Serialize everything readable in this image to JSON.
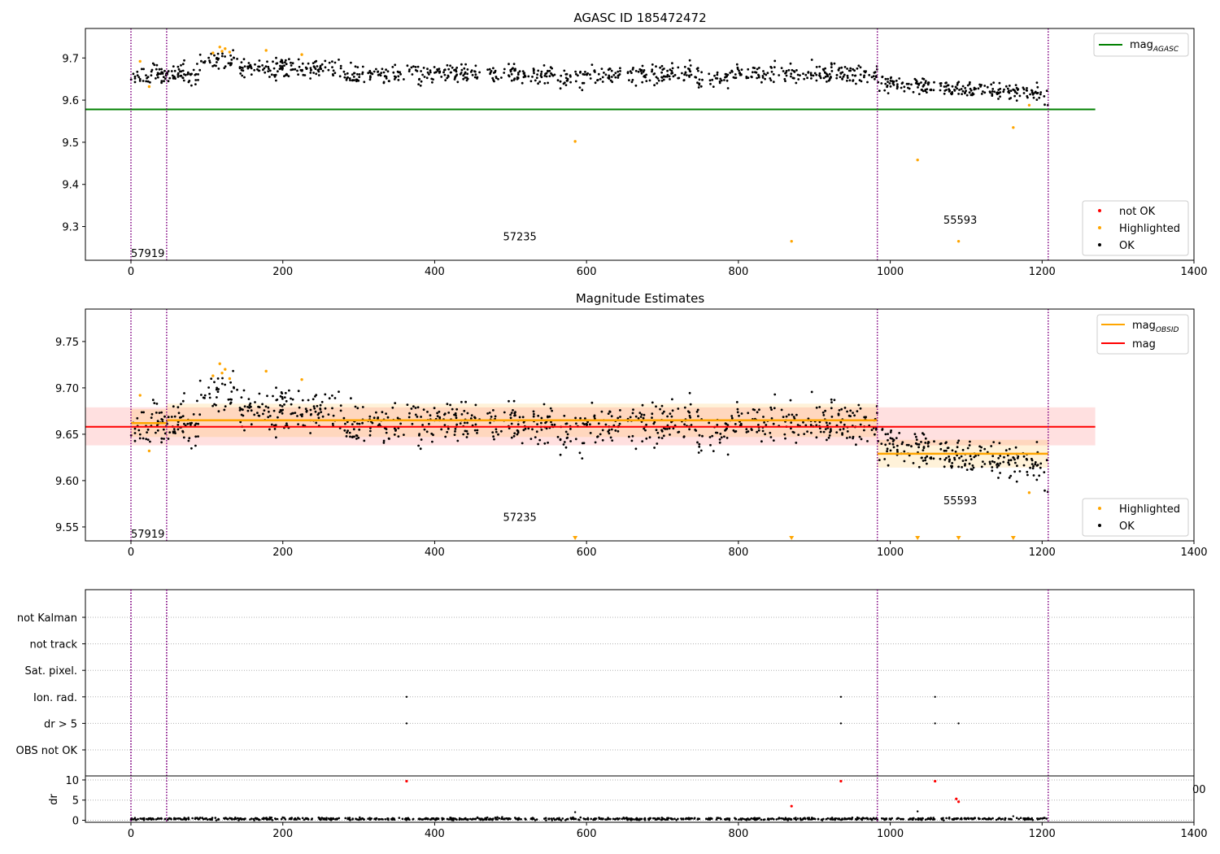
{
  "chart_data": [
    {
      "id": "p1",
      "type": "scatter",
      "title": "AGASC ID 185472472",
      "xlim": [
        -60,
        1400
      ],
      "ylim": [
        9.22,
        9.77
      ],
      "xticks": [
        0,
        200,
        400,
        600,
        800,
        1000,
        1200,
        1400
      ],
      "yticks": [
        9.3,
        9.4,
        9.5,
        9.6,
        9.7
      ],
      "ytick_labels": [
        "9.3",
        "9.4",
        "9.5",
        "9.6",
        "9.7"
      ],
      "vlines": [
        0,
        47,
        983,
        1208
      ],
      "obsid_labels": [
        {
          "text": "57919",
          "x": 0,
          "y": 9.235
        },
        {
          "text": "57235",
          "x": 490,
          "y": 9.275
        },
        {
          "text": "55593",
          "x": 1070,
          "y": 9.315
        }
      ],
      "hline": {
        "name_base": "mag",
        "name_sub": "AGASC",
        "y": 9.578,
        "x_range": [
          -60,
          1270
        ],
        "color": "#008000"
      },
      "highlighted": [
        [
          12,
          9.692
        ],
        [
          24,
          9.632
        ],
        [
          108,
          9.712
        ],
        [
          117,
          9.726
        ],
        [
          120,
          9.716
        ],
        [
          124,
          9.722
        ],
        [
          130,
          9.714
        ],
        [
          178,
          9.718
        ],
        [
          225,
          9.708
        ],
        [
          585,
          9.502
        ],
        [
          870,
          9.265
        ],
        [
          1036,
          9.458
        ],
        [
          1090,
          9.265
        ],
        [
          1162,
          9.535
        ],
        [
          1183,
          9.588
        ]
      ],
      "legend_scatter": [
        "not OK",
        "Highlighted",
        "OK"
      ],
      "colors": {
        "ok": "#000000",
        "highlighted": "#ffa500",
        "not_ok": "#ff0000",
        "vline": "#800080"
      }
    },
    {
      "id": "p2",
      "type": "scatter",
      "title": "Magnitude Estimates",
      "xlim": [
        -60,
        1400
      ],
      "ylim": [
        9.535,
        9.785
      ],
      "xticks": [
        0,
        200,
        400,
        600,
        800,
        1000,
        1200,
        1400
      ],
      "yticks": [
        9.55,
        9.6,
        9.65,
        9.7,
        9.75
      ],
      "ytick_labels": [
        "9.55",
        "9.60",
        "9.65",
        "9.70",
        "9.75"
      ],
      "vlines": [
        0,
        47,
        983,
        1208
      ],
      "obsid_labels": [
        {
          "text": "57919",
          "x": 0,
          "y": 9.542
        },
        {
          "text": "57235",
          "x": 490,
          "y": 9.56
        },
        {
          "text": "55593",
          "x": 1070,
          "y": 9.578
        }
      ],
      "mag": {
        "name": "mag",
        "y": 9.658,
        "band": [
          9.638,
          9.679
        ],
        "x_range": [
          -60,
          1270
        ],
        "color": "#ff0000"
      },
      "mag_obsid": {
        "name_base": "mag",
        "name_sub": "OBSID",
        "color": "#ffa500",
        "segments": [
          {
            "x": [
              0,
              47
            ],
            "y": 9.662,
            "band": [
              9.647,
              9.677
            ]
          },
          {
            "x": [
              47,
              983
            ],
            "y": 9.665,
            "band": [
              9.647,
              9.683
            ]
          },
          {
            "x": [
              983,
              1208
            ],
            "y": 9.629,
            "band": [
              9.614,
              9.644
            ]
          }
        ]
      },
      "highlighted": [
        [
          12,
          9.692
        ],
        [
          24,
          9.632
        ],
        [
          108,
          9.713
        ],
        [
          117,
          9.726
        ],
        [
          120,
          9.716
        ],
        [
          124,
          9.72
        ],
        [
          130,
          9.71
        ],
        [
          178,
          9.718
        ],
        [
          225,
          9.709
        ],
        [
          1183,
          9.587
        ]
      ],
      "below_markers": [
        585,
        870,
        1036,
        1090,
        1162
      ],
      "legend_scatter": [
        "Highlighted",
        "OK"
      ],
      "colors": {
        "ok": "#000000",
        "highlighted": "#ffa500",
        "vline": "#800080"
      }
    },
    {
      "id": "p3",
      "type": "scatter",
      "xlim": [
        -60,
        1400
      ],
      "vlines": [
        0,
        47,
        983,
        1208
      ],
      "flag_rows": [
        "OBS not OK",
        "dr > 5",
        "Ion. rad.",
        "Sat. pixel.",
        "not track",
        "not Kalman"
      ],
      "flag_points": [
        {
          "row": "Ion. rad.",
          "x": [
            363,
            935,
            1059
          ]
        },
        {
          "row": "dr > 5",
          "x": [
            363,
            935,
            1059,
            1090
          ]
        }
      ],
      "colors": {
        "flag": "#000000",
        "vline": "#800080"
      }
    },
    {
      "id": "p4",
      "type": "scatter",
      "ylabel": "dr",
      "xlim": [
        -60,
        1400
      ],
      "ylim": [
        -0.5,
        11
      ],
      "xticks": [
        0,
        200,
        400,
        600,
        800,
        1000,
        1200,
        1400
      ],
      "yticks": [
        0,
        5,
        10
      ],
      "ytick_labels": [
        "0",
        "5",
        "10"
      ],
      "vlines": [
        0,
        47,
        983,
        1208
      ],
      "right_tick_text": "00",
      "not_ok_points": [
        [
          363,
          9.7
        ],
        [
          870,
          3.5
        ],
        [
          935,
          9.7
        ],
        [
          1059,
          9.7
        ],
        [
          1087,
          5.3
        ],
        [
          1090,
          4.6
        ]
      ],
      "ok_outliers": [
        [
          585,
          2.0
        ],
        [
          1036,
          2.2
        ],
        [
          1162,
          1.0
        ]
      ],
      "colors": {
        "ok": "#000000",
        "not_ok": "#ff0000",
        "vline": "#800080"
      }
    }
  ]
}
